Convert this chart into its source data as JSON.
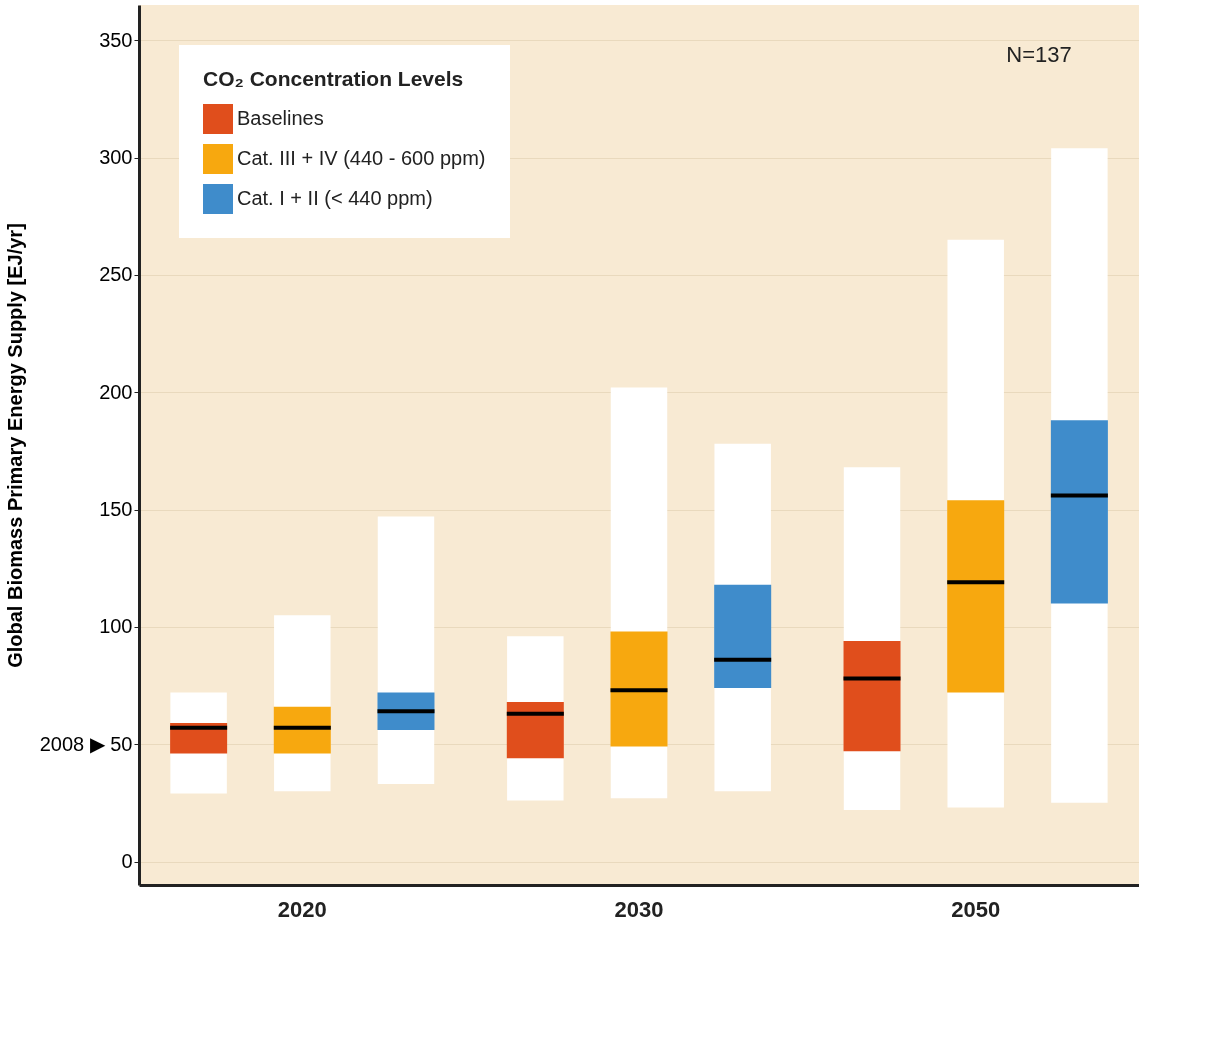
{
  "chart_data": {
    "type": "box",
    "ylabel": "Global Biomass Primary Energy Supply [EJ/yr]",
    "legend_title": "CO₂ Concentration Levels",
    "categories": [
      "2020",
      "2030",
      "2050"
    ],
    "ylim": [
      -10,
      365
    ],
    "yticks": [
      0,
      {
        "value": 50,
        "label": "2008 ▶ 50"
      },
      100,
      150,
      200,
      250,
      300,
      350
    ],
    "grid": "y",
    "legend": "top left",
    "annotations": [
      "N=137"
    ],
    "series": [
      {
        "name": "Baselines",
        "color": "#e04e1c",
        "boxes": [
          {
            "low": 29,
            "q1": 46,
            "median": 57,
            "q3": 59,
            "high": 72
          },
          {
            "low": 26,
            "q1": 44,
            "median": 63,
            "q3": 68,
            "high": 96
          },
          {
            "low": 22,
            "q1": 47,
            "median": 78,
            "q3": 94,
            "high": 168
          }
        ]
      },
      {
        "name": "Cat. III + IV (440 - 600 ppm)",
        "color": "#f7a80f",
        "boxes": [
          {
            "low": 30,
            "q1": 46,
            "median": 57,
            "q3": 66,
            "high": 105
          },
          {
            "low": 27,
            "q1": 49,
            "median": 73,
            "q3": 98,
            "high": 202
          },
          {
            "low": 23,
            "q1": 72,
            "median": 119,
            "q3": 154,
            "high": 265
          }
        ]
      },
      {
        "name": "Cat. I + II (< 440 ppm)",
        "color": "#3f8ccb",
        "boxes": [
          {
            "low": 33,
            "q1": 56,
            "median": 64,
            "q3": 72,
            "high": 147
          },
          {
            "low": 30,
            "q1": 74,
            "median": 86,
            "q3": 118,
            "high": 178
          },
          {
            "low": 25,
            "q1": 110,
            "median": 156,
            "q3": 188,
            "high": 304
          }
        ]
      }
    ]
  }
}
